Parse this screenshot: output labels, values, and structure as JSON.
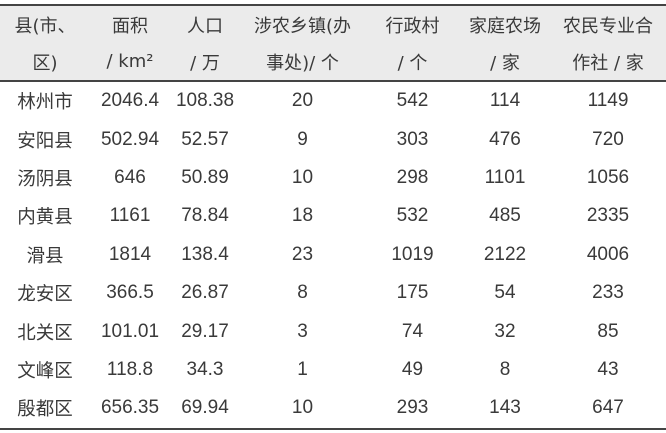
{
  "table": {
    "headers": [
      {
        "line1": "县(市、",
        "line2": "区)"
      },
      {
        "line1": "面积",
        "line2": "/ km²"
      },
      {
        "line1": "人口",
        "line2": "/ 万"
      },
      {
        "line1": "涉农乡镇(办",
        "line2": "事处)/ 个"
      },
      {
        "line1": "行政村",
        "line2": "/ 个"
      },
      {
        "line1": "家庭农场",
        "line2": "/ 家"
      },
      {
        "line1": "农民专业合",
        "line2": "作社 / 家"
      }
    ],
    "rows": [
      [
        "林州市",
        "2046.4",
        "108.38",
        "20",
        "542",
        "114",
        "1149"
      ],
      [
        "安阳县",
        "502.94",
        "52.57",
        "9",
        "303",
        "476",
        "720"
      ],
      [
        "汤阴县",
        "646",
        "50.89",
        "10",
        "298",
        "1101",
        "1056"
      ],
      [
        "内黄县",
        "1161",
        "78.84",
        "18",
        "532",
        "485",
        "2335"
      ],
      [
        "滑县",
        "1814",
        "138.4",
        "23",
        "1019",
        "2122",
        "4006"
      ],
      [
        "龙安区",
        "366.5",
        "26.87",
        "8",
        "175",
        "54",
        "233"
      ],
      [
        "北关区",
        "101.01",
        "29.17",
        "3",
        "74",
        "32",
        "85"
      ],
      [
        "文峰区",
        "118.8",
        "34.3",
        "1",
        "49",
        "8",
        "43"
      ],
      [
        "殷都区",
        "656.35",
        "69.94",
        "10",
        "293",
        "143",
        "647"
      ]
    ]
  }
}
